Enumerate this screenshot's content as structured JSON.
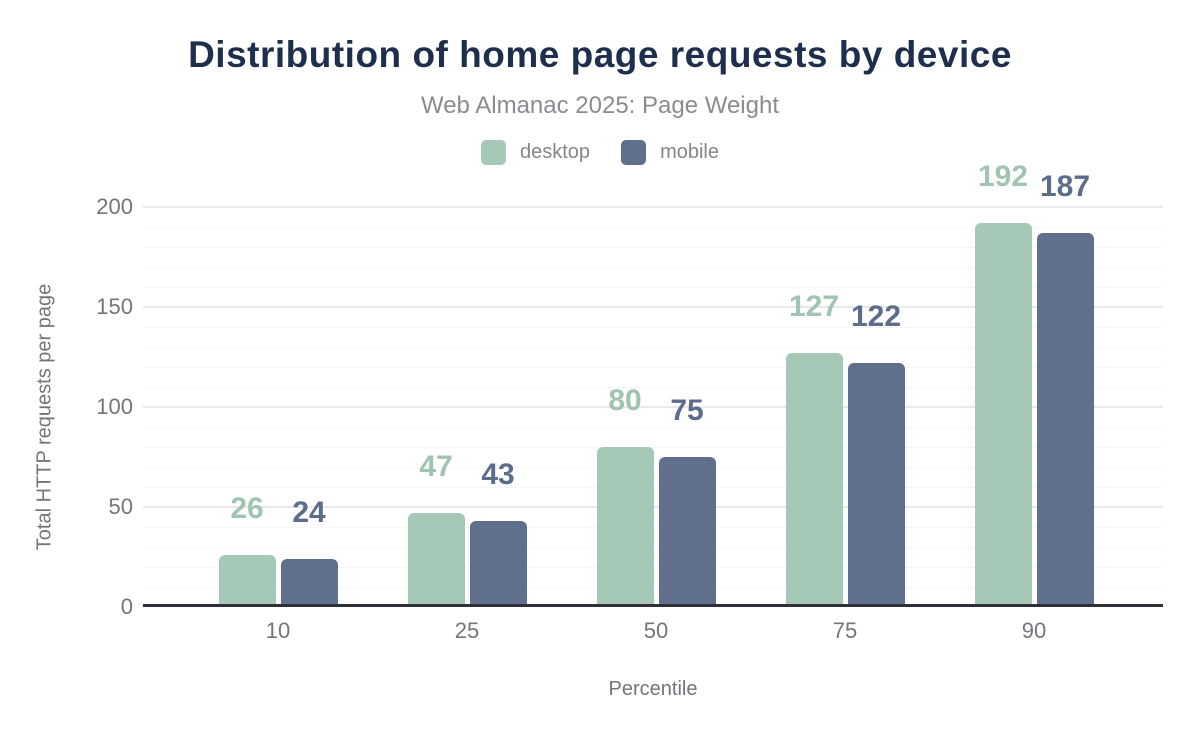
{
  "header": {
    "title": "Distribution of home page requests by device",
    "subtitle": "Web Almanac 2025: Page Weight"
  },
  "legend": {
    "items": [
      {
        "label": "desktop",
        "color": "#a6c8b7"
      },
      {
        "label": "mobile",
        "color": "#60708c"
      }
    ]
  },
  "chart_data": {
    "type": "bar",
    "title": "Distribution of home page requests by device",
    "subtitle": "Web Almanac 2025: Page Weight",
    "categories": [
      "10",
      "25",
      "50",
      "75",
      "90"
    ],
    "series": [
      {
        "name": "desktop",
        "color": "#a6c8b7",
        "label_color": "#a0c4b2",
        "values": [
          26,
          47,
          80,
          127,
          192
        ]
      },
      {
        "name": "mobile",
        "color": "#60708c",
        "label_color": "#5c6d8b",
        "values": [
          24,
          43,
          75,
          122,
          187
        ]
      }
    ],
    "xlabel": "Percentile",
    "ylabel": "Total HTTP requests per page",
    "ylim": [
      0,
      200
    ],
    "yticks": [
      0,
      50,
      100,
      150,
      200
    ],
    "minor_grid_step": 10,
    "grid": true,
    "legend_position": "top",
    "data_labels": true,
    "axis_line_color": "#2f2f39",
    "tick_label_color": "#74747c"
  }
}
